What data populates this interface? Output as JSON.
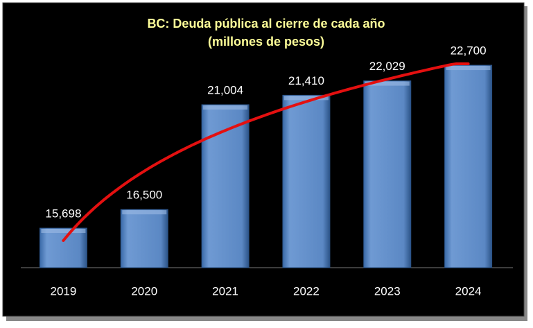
{
  "chart_data": {
    "type": "bar",
    "title": "BC: Deuda pública al cierre de cada año",
    "subtitle": "(millones de pesos)",
    "categories": [
      "2019",
      "2020",
      "2021",
      "2022",
      "2023",
      "2024"
    ],
    "values": [
      15698,
      16500,
      21004,
      21410,
      22029,
      22700
    ],
    "value_labels": [
      "15,698",
      "16,500",
      "21,004",
      "21,410",
      "22,029",
      "22,700"
    ],
    "color": "#4f81bd",
    "trend_color": "#e41010",
    "ylim": [
      14000,
      23000
    ]
  }
}
